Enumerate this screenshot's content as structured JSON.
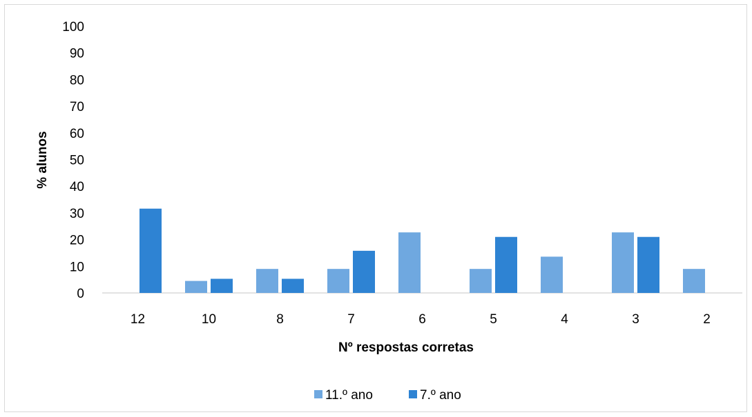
{
  "chart_data": {
    "type": "bar",
    "title": "",
    "xlabel": "Nº respostas corretas",
    "ylabel": "% alunos",
    "ylim": [
      0,
      100
    ],
    "yticks": [
      0,
      10,
      20,
      30,
      40,
      50,
      60,
      70,
      80,
      90,
      100
    ],
    "categories": [
      "12",
      "10",
      "8",
      "7",
      "6",
      "5",
      "4",
      "3",
      "2"
    ],
    "series": [
      {
        "name": "11.º ano",
        "color": "#6fa8e0",
        "values": [
          0,
          4.5,
          9,
          9,
          22.7,
          9,
          13.6,
          22.7,
          9
        ]
      },
      {
        "name": "7.º ano",
        "color": "#2e83d3",
        "values": [
          31.6,
          5.3,
          5.3,
          15.8,
          0,
          21,
          0,
          21,
          0
        ]
      }
    ],
    "grid": false,
    "legend": "bottom"
  }
}
